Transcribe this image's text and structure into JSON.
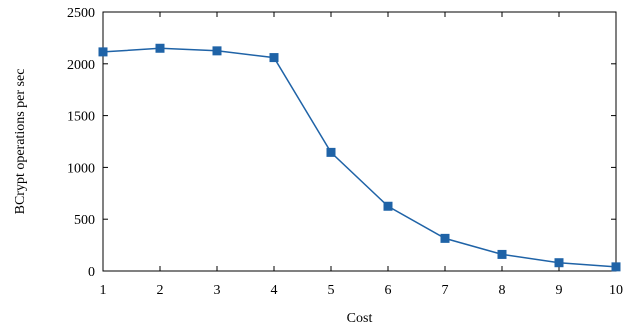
{
  "chart_data": {
    "type": "line",
    "title": "",
    "xlabel": "Cost",
    "ylabel": "BCrypt operations per sec",
    "xlim": [
      1,
      10
    ],
    "ylim": [
      0,
      2500
    ],
    "x_ticks": [
      "1",
      "2",
      "3",
      "4",
      "5",
      "6",
      "7",
      "8",
      "9",
      "10"
    ],
    "y_ticks": [
      "0",
      "500",
      "1000",
      "1500",
      "2000",
      "2500"
    ],
    "grid": false,
    "legend": "none",
    "series": [
      {
        "color": "#1f63a7",
        "marker": "square",
        "x": [
          1,
          2,
          3,
          4,
          5,
          6,
          7,
          8,
          9,
          10
        ],
        "y": [
          2115,
          2150,
          2125,
          2060,
          1145,
          625,
          315,
          160,
          80,
          40
        ]
      }
    ]
  }
}
